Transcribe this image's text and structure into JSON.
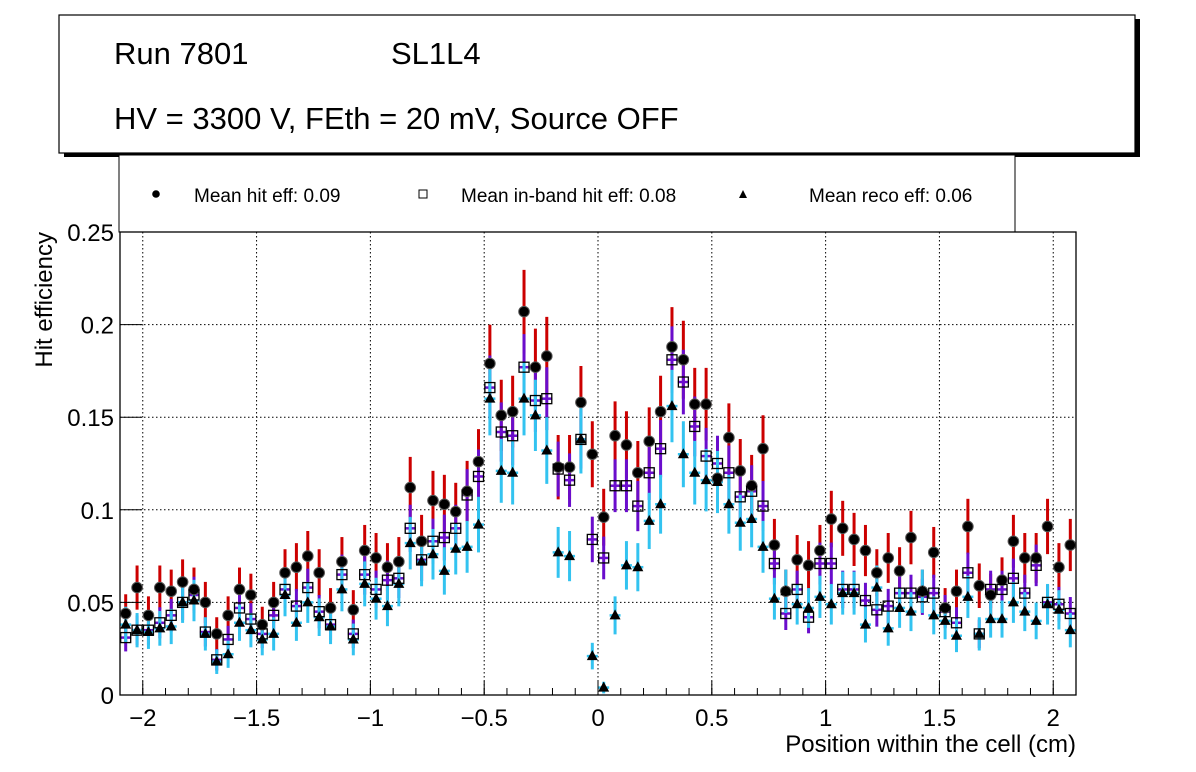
{
  "chart_data": {
    "type": "scatter",
    "title_box": {
      "line1_left": "Run 7801",
      "line1_right": "SL1L4",
      "line2": "HV = 3300 V, FEth = 20 mV, Source OFF"
    },
    "legend": {
      "placement": "top",
      "entries": [
        {
          "marker": "filled-circle",
          "label": "Mean hit  eff: 0.09"
        },
        {
          "marker": "open-square",
          "label": "Mean in-band hit eff: 0.08"
        },
        {
          "marker": "filled-triangle",
          "label": "Mean reco eff: 0.06"
        }
      ]
    },
    "xlabel": "Position within the cell (cm)",
    "ylabel": "Hit efficiency",
    "xlim": [
      -2.1,
      2.1
    ],
    "ylim": [
      0,
      0.25
    ],
    "xticks": [
      -2,
      -1.5,
      -1,
      -0.5,
      0,
      0.5,
      1,
      1.5,
      2
    ],
    "xtick_labels": [
      "−2",
      "−1.5",
      "−1",
      "−0.5",
      "0",
      "0.5",
      "1",
      "1.5",
      "2"
    ],
    "yticks": [
      0,
      0.05,
      0.1,
      0.15,
      0.2,
      0.25
    ],
    "ytick_labels": [
      "0",
      "0.05",
      "0.1",
      "0.15",
      "0.2",
      "0.25"
    ],
    "grid": true,
    "colors": {
      "hit_err": "#cc0000",
      "inband_err": "#6a0dcc",
      "reco_err": "#33c3f0"
    },
    "x_start": -2.075,
    "x_step": 0.05,
    "series": [
      {
        "name": "hit",
        "err": 0.014,
        "values": [
          0.044,
          0.058,
          0.043,
          0.058,
          0.056,
          0.061,
          0.057,
          0.05,
          0.033,
          0.043,
          0.057,
          0.054,
          0.038,
          0.05,
          0.066,
          0.069,
          0.075,
          0.066,
          0.047,
          0.072,
          0.046,
          0.078,
          0.074,
          0.069,
          0.072,
          0.112,
          0.083,
          0.105,
          0.103,
          0.099,
          0.11,
          0.126,
          0.179,
          0.151,
          0.153,
          0.207,
          0.177,
          0.183,
          0.123,
          0.123,
          0.158,
          0.13,
          0.096,
          0.14,
          0.135,
          0.12,
          0.137,
          0.153,
          0.188,
          0.181,
          0.157,
          0.157,
          0.117,
          0.139,
          0.121,
          0.113,
          0.133,
          0.081,
          0.056,
          0.073,
          0.07,
          0.078,
          0.095,
          0.09,
          0.084,
          0.078,
          0.066,
          0.074,
          0.067,
          0.085,
          0.056,
          0.077,
          0.047,
          0.056,
          0.091,
          0.059,
          0.054,
          0.062,
          0.083,
          0.074,
          0.074,
          0.091,
          0.069,
          0.081
        ]
      },
      {
        "name": "inband",
        "err": 0.012,
        "values": [
          0.031,
          0.035,
          0.035,
          0.039,
          0.043,
          0.05,
          0.054,
          0.034,
          0.019,
          0.03,
          0.047,
          0.041,
          0.033,
          0.043,
          0.057,
          0.048,
          0.058,
          0.045,
          0.038,
          0.065,
          0.033,
          0.065,
          0.057,
          0.062,
          0.063,
          0.09,
          0.073,
          0.083,
          0.085,
          0.09,
          0.108,
          0.118,
          0.166,
          0.142,
          0.14,
          0.177,
          0.159,
          0.16,
          0.122,
          0.116,
          0.138,
          0.084,
          0.074,
          0.113,
          0.113,
          0.102,
          0.12,
          0.133,
          0.181,
          0.169,
          0.145,
          0.129,
          0.125,
          0.12,
          0.107,
          0.11,
          0.102,
          0.071,
          0.044,
          0.057,
          0.042,
          0.071,
          0.071,
          0.057,
          0.057,
          0.051,
          0.046,
          0.048,
          0.055,
          0.055,
          0.053,
          0.055,
          0.045,
          0.039,
          0.066,
          0.033,
          0.057,
          0.057,
          0.063,
          0.055,
          0.07,
          0.05,
          0.049,
          0.044
        ]
      },
      {
        "name": "reco",
        "err": 0.014,
        "values": [
          0.038,
          0.035,
          0.034,
          0.036,
          0.037,
          0.05,
          0.051,
          0.033,
          0.018,
          0.022,
          0.039,
          0.035,
          0.03,
          0.033,
          0.054,
          0.039,
          0.05,
          0.042,
          0.037,
          0.057,
          0.03,
          0.06,
          0.052,
          0.048,
          0.06,
          0.082,
          0.072,
          0.076,
          0.067,
          0.079,
          0.08,
          0.092,
          0.16,
          0.121,
          0.12,
          0.16,
          0.151,
          0.132,
          0.077,
          0.075,
          0.138,
          0.021,
          0.004,
          0.043,
          0.07,
          0.069,
          0.094,
          0.103,
          0.156,
          0.13,
          0.12,
          0.116,
          0.115,
          0.103,
          0.093,
          0.095,
          0.08,
          0.052,
          0.056,
          0.049,
          0.047,
          0.053,
          0.049,
          0.055,
          0.055,
          0.038,
          0.058,
          0.036,
          0.047,
          0.045,
          0.056,
          0.043,
          0.04,
          0.032,
          0.053,
          0.033,
          0.041,
          0.041,
          0.05,
          0.045,
          0.04,
          0.049,
          0.046,
          0.035
        ]
      }
    ]
  }
}
